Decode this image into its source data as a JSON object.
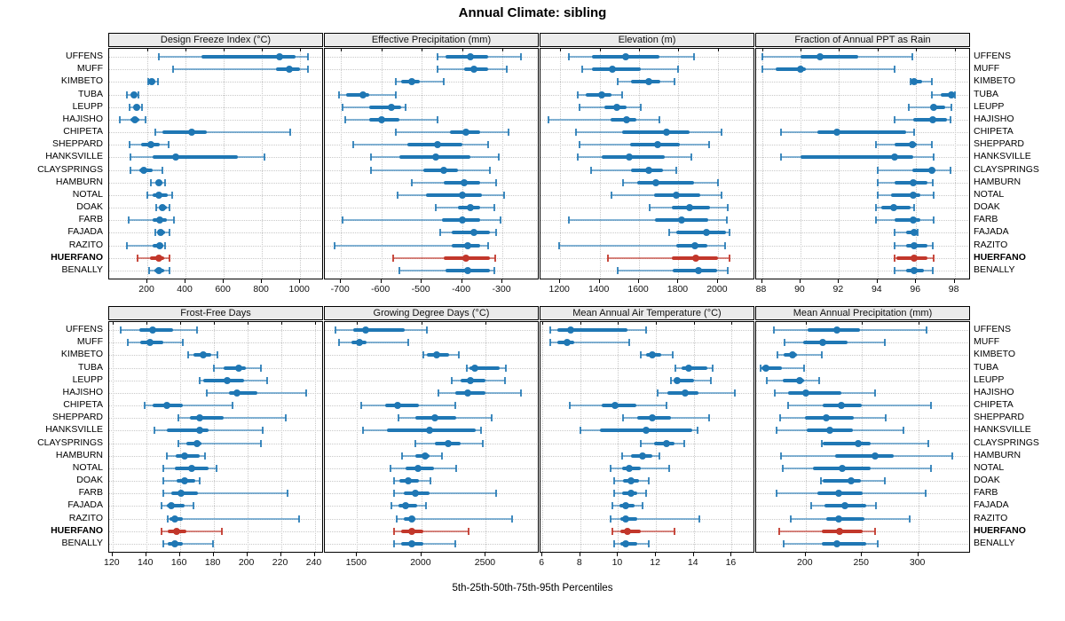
{
  "title": "Annual Climate: sibling",
  "footer": "5th-25th-50th-75th-95th Percentiles",
  "colors": {
    "series": "#1f77b4",
    "series_whisker": "rgba(31,119,180,0.55)",
    "series_cap": "rgba(31,119,180,0.85)",
    "highlight": "#c2372b",
    "highlight_whisker": "rgba(194,55,43,0.6)",
    "highlight_cap": "rgba(194,55,43,0.9)",
    "grid": "#c9c9c9",
    "header_bg": "#ebebeb"
  },
  "highlight_station": "HUERFANO",
  "chart_data": {
    "type": "interval_dotplot",
    "percentiles": [
      5,
      25,
      50,
      75,
      95
    ],
    "stations": [
      "UFFENS",
      "MUFF",
      "KIMBETO",
      "TUBA",
      "LEUPP",
      "HAJISHO",
      "CHIPETA",
      "SHEPPARD",
      "HANKSVILLE",
      "CLAYSPRINGS",
      "HAMBURN",
      "NOTAL",
      "DOAK",
      "FARB",
      "FAJADA",
      "RAZITO",
      "HUERFANO",
      "BENALLY"
    ],
    "panels": [
      {
        "title": "Design Freeze Index (°C)",
        "grid_row": 0,
        "ticks": [
          200,
          400,
          600,
          800,
          1000
        ],
        "xlim": [
          0,
          1120
        ],
        "values": [
          [
            260,
            485,
            890,
            975,
            1040
          ],
          [
            335,
            875,
            945,
            1000,
            1040
          ],
          [
            205,
            215,
            225,
            240,
            255
          ],
          [
            95,
            115,
            130,
            145,
            155
          ],
          [
            105,
            130,
            145,
            160,
            170
          ],
          [
            55,
            110,
            135,
            160,
            190
          ],
          [
            240,
            280,
            430,
            510,
            950
          ],
          [
            105,
            165,
            220,
            265,
            310
          ],
          [
            110,
            230,
            350,
            675,
            815
          ],
          [
            110,
            160,
            180,
            230,
            280
          ],
          [
            220,
            240,
            260,
            280,
            295
          ],
          [
            200,
            230,
            260,
            305,
            330
          ],
          [
            245,
            260,
            280,
            300,
            315
          ],
          [
            100,
            230,
            265,
            300,
            340
          ],
          [
            240,
            255,
            270,
            295,
            315
          ],
          [
            95,
            230,
            265,
            285,
            295
          ],
          [
            150,
            215,
            260,
            290,
            315
          ],
          [
            210,
            235,
            260,
            290,
            315
          ]
        ]
      },
      {
        "title": "Effective Precipitation (mm)",
        "grid_row": 0,
        "ticks": [
          -700,
          -600,
          -500,
          -400,
          -300
        ],
        "xlim": [
          -740,
          -210
        ],
        "values": [
          [
            -460,
            -440,
            -380,
            -335,
            -255
          ],
          [
            -460,
            -395,
            -370,
            -335,
            -290
          ],
          [
            -565,
            -550,
            -525,
            -505,
            -445
          ],
          [
            -705,
            -688,
            -645,
            -630,
            -565
          ],
          [
            -695,
            -630,
            -575,
            -550,
            -540
          ],
          [
            -690,
            -630,
            -600,
            -555,
            -460
          ],
          [
            -565,
            -430,
            -390,
            -355,
            -285
          ],
          [
            -670,
            -535,
            -460,
            -400,
            -335
          ],
          [
            -625,
            -555,
            -465,
            -380,
            -310
          ],
          [
            -625,
            -495,
            -445,
            -410,
            -330
          ],
          [
            -525,
            -445,
            -395,
            -355,
            -315
          ],
          [
            -560,
            -490,
            -400,
            -350,
            -295
          ],
          [
            -465,
            -410,
            -380,
            -355,
            -320
          ],
          [
            -695,
            -450,
            -400,
            -355,
            -305
          ],
          [
            -455,
            -425,
            -370,
            -330,
            -315
          ],
          [
            -715,
            -425,
            -385,
            -355,
            -335
          ],
          [
            -570,
            -445,
            -390,
            -330,
            -318
          ],
          [
            -555,
            -440,
            -385,
            -330,
            -320
          ]
        ]
      },
      {
        "title": "Elevation (m)",
        "grid_row": 0,
        "ticks": [
          1200,
          1400,
          1600,
          1800,
          2000
        ],
        "xlim": [
          1100,
          2185
        ],
        "values": [
          [
            1245,
            1360,
            1530,
            1705,
            1880
          ],
          [
            1310,
            1360,
            1465,
            1610,
            1800
          ],
          [
            1490,
            1560,
            1650,
            1710,
            1780
          ],
          [
            1290,
            1330,
            1410,
            1460,
            1515
          ],
          [
            1300,
            1425,
            1485,
            1535,
            1610
          ],
          [
            1140,
            1455,
            1535,
            1585,
            1705
          ],
          [
            1280,
            1515,
            1740,
            1855,
            2020
          ],
          [
            1300,
            1555,
            1695,
            1805,
            1955
          ],
          [
            1290,
            1410,
            1550,
            1730,
            1865
          ],
          [
            1355,
            1560,
            1650,
            1720,
            1790
          ],
          [
            1520,
            1590,
            1685,
            1880,
            2000
          ],
          [
            1460,
            1675,
            1790,
            1910,
            2020
          ],
          [
            1655,
            1765,
            1855,
            1960,
            2050
          ],
          [
            1245,
            1680,
            1815,
            1950,
            2045
          ],
          [
            1755,
            1790,
            1940,
            2040,
            2060
          ],
          [
            1195,
            1790,
            1885,
            1945,
            2035
          ],
          [
            1440,
            1765,
            1890,
            2000,
            2060
          ],
          [
            1490,
            1770,
            1900,
            1995,
            2050
          ]
        ]
      },
      {
        "title": "Fraction of Annual PPT as Rain",
        "grid_row": 0,
        "ticks": [
          88,
          90,
          92,
          94,
          96,
          98
        ],
        "xlim": [
          87.7,
          98.8
        ],
        "values": [
          [
            88.0,
            90.0,
            91.0,
            93.0,
            95.8
          ],
          [
            88.0,
            88.7,
            90.0,
            90.3,
            94.9
          ],
          [
            95.7,
            95.8,
            95.9,
            96.3,
            96.8
          ],
          [
            96.8,
            97.3,
            97.85,
            97.95,
            98.0
          ],
          [
            95.6,
            96.8,
            96.9,
            97.5,
            97.85
          ],
          [
            94.9,
            95.85,
            96.85,
            97.6,
            97.8
          ],
          [
            89.0,
            90.9,
            91.9,
            95.5,
            95.9
          ],
          [
            93.9,
            94.9,
            95.8,
            96.05,
            96.8
          ],
          [
            89.0,
            90.0,
            94.9,
            95.85,
            96.9
          ],
          [
            94.0,
            95.8,
            96.8,
            97.0,
            97.8
          ],
          [
            94.0,
            94.9,
            95.85,
            96.6,
            96.85
          ],
          [
            94.0,
            94.7,
            95.85,
            96.2,
            96.9
          ],
          [
            93.9,
            94.2,
            94.85,
            95.7,
            95.9
          ],
          [
            93.9,
            94.9,
            95.85,
            96.2,
            96.9
          ],
          [
            94.9,
            95.5,
            95.9,
            96.0,
            96.1
          ],
          [
            94.9,
            95.5,
            95.9,
            96.6,
            96.85
          ],
          [
            94.9,
            95.0,
            95.9,
            96.6,
            96.9
          ],
          [
            94.9,
            95.5,
            95.9,
            96.4,
            96.85
          ]
        ]
      },
      {
        "title": "Frost-Free Days",
        "grid_row": 1,
        "ticks": [
          120,
          140,
          160,
          180,
          200,
          220,
          240
        ],
        "xlim": [
          118,
          245
        ],
        "values": [
          [
            125,
            136,
            144,
            156,
            170
          ],
          [
            129,
            136.5,
            142,
            150,
            162
          ],
          [
            165,
            168,
            174,
            178.5,
            182.5
          ],
          [
            180,
            186,
            195,
            199,
            208
          ],
          [
            172,
            174,
            188,
            198,
            212
          ],
          [
            176,
            189,
            194,
            206,
            235
          ],
          [
            139,
            144,
            152,
            162,
            191
          ],
          [
            159,
            166,
            172,
            186,
            223
          ],
          [
            145,
            152,
            172,
            177,
            209
          ],
          [
            159,
            164,
            170,
            173,
            208
          ],
          [
            152,
            157.5,
            163,
            172,
            175
          ],
          [
            150,
            157,
            167,
            177,
            182
          ],
          [
            150,
            158,
            163,
            169,
            172
          ],
          [
            150,
            155,
            160.5,
            170.5,
            224
          ],
          [
            149,
            152,
            155,
            163,
            168
          ],
          [
            153,
            154,
            157,
            162,
            231
          ],
          [
            149,
            153,
            158,
            164,
            185
          ],
          [
            150,
            153,
            157,
            162,
            179.5
          ]
        ]
      },
      {
        "title": "Growing Degree Days (°C)",
        "grid_row": 1,
        "ticks": [
          1500,
          2000,
          2500
        ],
        "xlim": [
          1250,
          2910
        ],
        "values": [
          [
            1330,
            1470,
            1570,
            1870,
            2045
          ],
          [
            1360,
            1457,
            1520,
            1575,
            1900
          ],
          [
            2015,
            2045,
            2120,
            2215,
            2290
          ],
          [
            2350,
            2375,
            2415,
            2610,
            2655
          ],
          [
            2235,
            2305,
            2380,
            2500,
            2645
          ],
          [
            2135,
            2265,
            2360,
            2500,
            2775
          ],
          [
            1535,
            1715,
            1815,
            1980,
            2260
          ],
          [
            1820,
            1955,
            2105,
            2270,
            2545
          ],
          [
            1545,
            1735,
            2065,
            2420,
            2465
          ],
          [
            1950,
            2105,
            2210,
            2305,
            2475
          ],
          [
            1850,
            1955,
            2030,
            2060,
            2160
          ],
          [
            1760,
            1880,
            1970,
            2100,
            2270
          ],
          [
            1785,
            1830,
            1895,
            1980,
            2070
          ],
          [
            1790,
            1860,
            1950,
            2060,
            2580
          ],
          [
            1770,
            1820,
            1880,
            1965,
            2035
          ],
          [
            1805,
            1860,
            1925,
            1950,
            2700
          ],
          [
            1785,
            1845,
            1925,
            2015,
            2365
          ],
          [
            1785,
            1845,
            1925,
            2015,
            2260
          ]
        ]
      },
      {
        "title": "Mean Annual Air Temperature (°C)",
        "grid_row": 1,
        "ticks": [
          6,
          8,
          10,
          12,
          14,
          16
        ],
        "xlim": [
          5.9,
          17.2
        ],
        "values": [
          [
            6.4,
            6.8,
            7.5,
            10.5,
            11.5
          ],
          [
            6.4,
            6.8,
            7.3,
            7.7,
            10.6
          ],
          [
            11.2,
            11.5,
            11.8,
            12.3,
            12.9
          ],
          [
            13.05,
            13.35,
            13.75,
            14.7,
            15.0
          ],
          [
            12.8,
            12.95,
            13.1,
            14.0,
            14.9
          ],
          [
            12.1,
            12.6,
            13.55,
            14.25,
            16.15
          ],
          [
            7.45,
            9.15,
            9.85,
            10.95,
            12.55
          ],
          [
            10.25,
            11.0,
            11.8,
            12.8,
            14.8
          ],
          [
            8.0,
            9.05,
            11.5,
            13.9,
            14.2
          ],
          [
            11.2,
            11.9,
            12.55,
            13.0,
            13.5
          ],
          [
            10.2,
            10.7,
            11.3,
            11.8,
            12.2
          ],
          [
            9.6,
            10.2,
            10.6,
            11.2,
            12.7
          ],
          [
            9.8,
            10.25,
            10.7,
            11.1,
            11.6
          ],
          [
            9.8,
            10.2,
            10.7,
            11.0,
            11.5
          ],
          [
            9.7,
            10.05,
            10.4,
            10.85,
            11.3
          ],
          [
            9.6,
            10.1,
            10.4,
            11.0,
            14.3
          ],
          [
            9.7,
            10.1,
            10.5,
            11.2,
            13.0
          ],
          [
            9.8,
            10.1,
            10.4,
            11.0,
            11.6
          ]
        ]
      },
      {
        "title": "Mean Annual Precipitation (mm)",
        "grid_row": 1,
        "ticks": [
          200,
          250,
          300
        ],
        "xlim": [
          156,
          346
        ],
        "values": [
          [
            172,
            202,
            228,
            248,
            307
          ],
          [
            181,
            198,
            215,
            237,
            270
          ],
          [
            175,
            180.5,
            188.5,
            192.5,
            214
          ],
          [
            160,
            161,
            164.5,
            179,
            198.5
          ],
          [
            165.5,
            180,
            195,
            198.5,
            212
          ],
          [
            172.5,
            184,
            200,
            232,
            262
          ],
          [
            184,
            215,
            232,
            250,
            311
          ],
          [
            177,
            199,
            218.5,
            243,
            271
          ],
          [
            174.5,
            201,
            221.5,
            242,
            286.5
          ],
          [
            214.5,
            215.5,
            246.5,
            258,
            309
          ],
          [
            178,
            226.5,
            262,
            278.5,
            330
          ],
          [
            180,
            206.5,
            232.5,
            258,
            311
          ],
          [
            213.5,
            215,
            240,
            249,
            270
          ],
          [
            174.5,
            210.5,
            229.5,
            251,
            306.5
          ],
          [
            204.5,
            217,
            234.5,
            253.5,
            262.5
          ],
          [
            187,
            218,
            229.5,
            252,
            292
          ],
          [
            176.5,
            214.5,
            230,
            251,
            262
          ],
          [
            180.5,
            214.5,
            228,
            253.5,
            264
          ]
        ]
      }
    ]
  }
}
